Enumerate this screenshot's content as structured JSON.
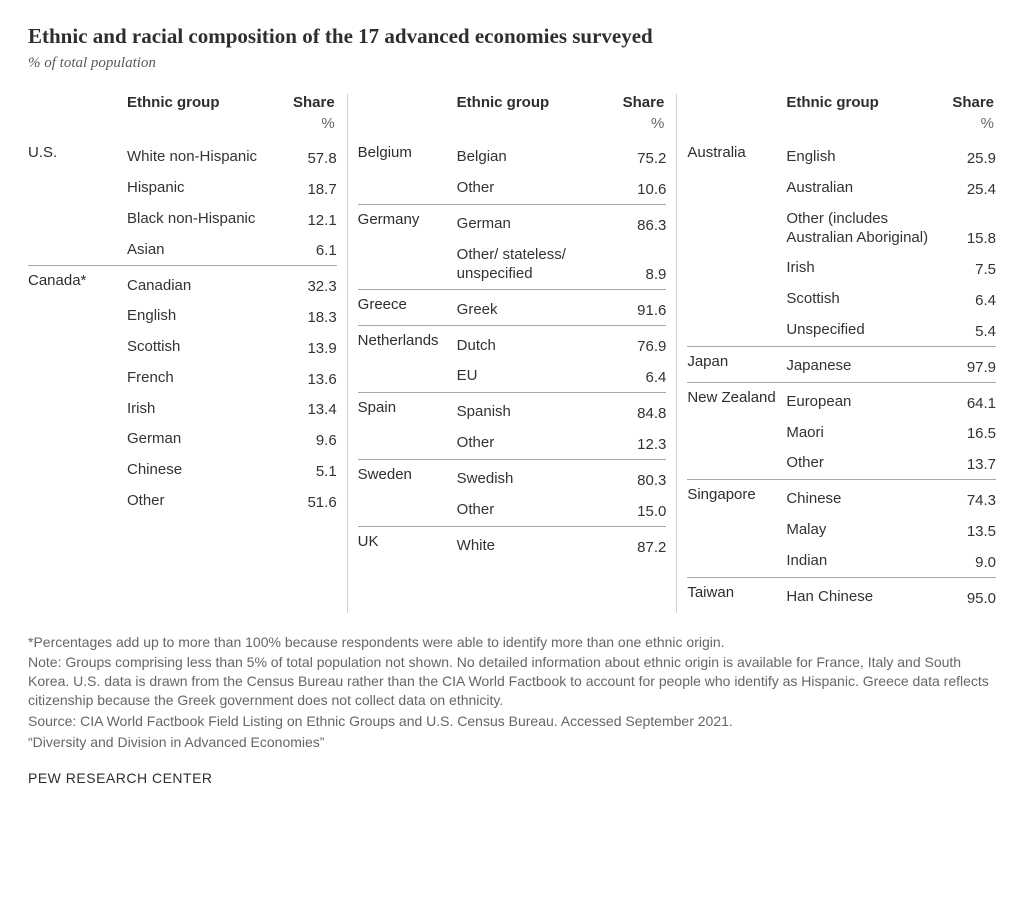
{
  "title": "Ethnic and racial composition of the 17 advanced economies surveyed",
  "subtitle": "% of total population",
  "headers": {
    "ethnic": "Ethnic group",
    "share": "Share",
    "unit": "%"
  },
  "columns": [
    [
      {
        "country": "U.S.",
        "ethnic": "White non-Hispanic",
        "share": "57.8",
        "sep": false
      },
      {
        "country": "",
        "ethnic": "Hispanic",
        "share": "18.7",
        "sep": false
      },
      {
        "country": "",
        "ethnic": "Black non-Hispanic",
        "share": "12.1",
        "sep": false
      },
      {
        "country": "",
        "ethnic": "Asian",
        "share": "6.1",
        "sep": false
      },
      {
        "country": "Canada*",
        "ethnic": "Canadian",
        "share": "32.3",
        "sep": true
      },
      {
        "country": "",
        "ethnic": "English",
        "share": "18.3",
        "sep": false
      },
      {
        "country": "",
        "ethnic": "Scottish",
        "share": "13.9",
        "sep": false
      },
      {
        "country": "",
        "ethnic": "French",
        "share": "13.6",
        "sep": false
      },
      {
        "country": "",
        "ethnic": "Irish",
        "share": "13.4",
        "sep": false
      },
      {
        "country": "",
        "ethnic": "German",
        "share": "9.6",
        "sep": false
      },
      {
        "country": "",
        "ethnic": "Chinese",
        "share": "5.1",
        "sep": false
      },
      {
        "country": "",
        "ethnic": "Other",
        "share": "51.6",
        "sep": false
      }
    ],
    [
      {
        "country": "Belgium",
        "ethnic": "Belgian",
        "share": "75.2",
        "sep": false
      },
      {
        "country": "",
        "ethnic": "Other",
        "share": "10.6",
        "sep": false
      },
      {
        "country": "Germany",
        "ethnic": "German",
        "share": "86.3",
        "sep": true
      },
      {
        "country": "",
        "ethnic": "Other/\nstateless/\nunspecified",
        "share": "8.9",
        "sep": false
      },
      {
        "country": "Greece",
        "ethnic": "Greek",
        "share": "91.6",
        "sep": true
      },
      {
        "country": "Netherlands",
        "ethnic": "Dutch",
        "share": "76.9",
        "sep": true
      },
      {
        "country": "",
        "ethnic": "EU",
        "share": "6.4",
        "sep": false
      },
      {
        "country": "Spain",
        "ethnic": "Spanish",
        "share": "84.8",
        "sep": true
      },
      {
        "country": "",
        "ethnic": "Other",
        "share": "12.3",
        "sep": false
      },
      {
        "country": "Sweden",
        "ethnic": "Swedish",
        "share": "80.3",
        "sep": true
      },
      {
        "country": "",
        "ethnic": "Other",
        "share": "15.0",
        "sep": false
      },
      {
        "country": "UK",
        "ethnic": "White",
        "share": "87.2",
        "sep": true
      }
    ],
    [
      {
        "country": "Australia",
        "ethnic": "English",
        "share": "25.9",
        "sep": false
      },
      {
        "country": "",
        "ethnic": "Australian",
        "share": "25.4",
        "sep": false
      },
      {
        "country": "",
        "ethnic": "Other (includes Australian Aboriginal)",
        "share": "15.8",
        "sep": false
      },
      {
        "country": "",
        "ethnic": "Irish",
        "share": "7.5",
        "sep": false
      },
      {
        "country": "",
        "ethnic": "Scottish",
        "share": "6.4",
        "sep": false
      },
      {
        "country": "",
        "ethnic": "Unspecified",
        "share": "5.4",
        "sep": false
      },
      {
        "country": "Japan",
        "ethnic": "Japanese",
        "share": "97.9",
        "sep": true
      },
      {
        "country": "New Zealand",
        "ethnic": "European",
        "share": "64.1",
        "sep": true
      },
      {
        "country": "",
        "ethnic": "Maori",
        "share": "16.5",
        "sep": false
      },
      {
        "country": "",
        "ethnic": "Other",
        "share": "13.7",
        "sep": false
      },
      {
        "country": "Singapore",
        "ethnic": "Chinese",
        "share": "74.3",
        "sep": true
      },
      {
        "country": "",
        "ethnic": "Malay",
        "share": "13.5",
        "sep": false
      },
      {
        "country": "",
        "ethnic": "Indian",
        "share": "9.0",
        "sep": false
      },
      {
        "country": "Taiwan",
        "ethnic": "Han Chinese",
        "share": "95.0",
        "sep": true
      }
    ]
  ],
  "footnotes": {
    "asterisk": "*Percentages add up to more than 100% because respondents were able to identify more than one ethnic origin.",
    "note": "Note: Groups comprising less than 5% of total population not shown. No detailed information about ethnic origin is available for France, Italy and South Korea. U.S. data is drawn from the Census Bureau rather than the CIA World Factbook to account for people who identify as Hispanic. Greece data reflects citizenship because the Greek government does not collect data on ethnicity.",
    "source": "Source: CIA World Factbook Field Listing on Ethnic Groups and U.S. Census Bureau. Accessed September 2021.",
    "report": "“Diversity and Division in Advanced Economies”"
  },
  "org": "PEW RESEARCH CENTER",
  "style": {
    "header_fontsize": 15,
    "body_fontsize": 15,
    "footnote_fontsize": 14,
    "title_fontsize": 21,
    "text_color": "#2e2e2e",
    "muted_color": "#666666",
    "border_color": "#a8a8a8",
    "col_border_color": "#cfcfcf",
    "background": "#ffffff"
  }
}
